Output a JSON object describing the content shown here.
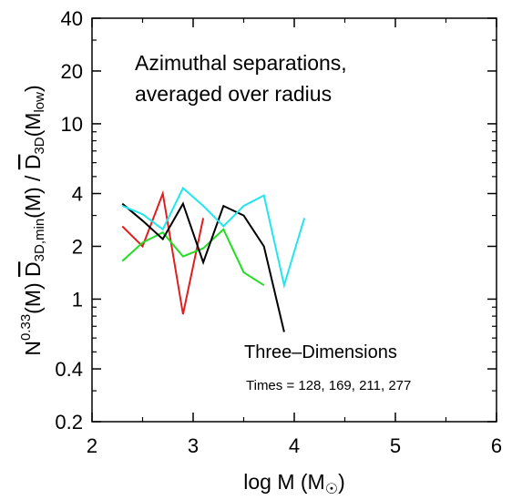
{
  "chart_data": {
    "type": "line",
    "title": "",
    "xlabel": "log M (M☉)",
    "xlabel_parts": {
      "main": "log M (M",
      "sub": "☉",
      "close": ")"
    },
    "ylabel_parts": {
      "n": "N",
      "n_sup": "0.33",
      "m_arg": "(M) ",
      "d1": "D",
      "d1_sub": "3D,min",
      "mid": "(M) / ",
      "d2": "D",
      "d2_sub": "3D",
      "m_low": "(M",
      "m_low_sub": "low",
      "close": ")"
    },
    "xlim": [
      2,
      6
    ],
    "ylim": [
      0.2,
      40
    ],
    "yscale": "log",
    "xticks": [
      2,
      3,
      4,
      5,
      6
    ],
    "xtick_labels": [
      "2",
      "3",
      "4",
      "5",
      "6"
    ],
    "yticks": [
      0.2,
      0.4,
      1,
      2,
      4,
      10,
      20,
      40
    ],
    "ytick_labels": [
      "0.2",
      "0.4",
      "1",
      "2",
      "4",
      "10",
      "20",
      "40"
    ],
    "grid": false,
    "annotations": {
      "heading_line1": "Azimuthal separations,",
      "heading_line2": "averaged over radius",
      "dims": "Three–Dimensions",
      "times": "Times = 128, 169, 211, 277"
    },
    "series": [
      {
        "color": "#e11d1d",
        "x": [
          2.3,
          2.5,
          2.7,
          2.9,
          3.1
        ],
        "y": [
          2.6,
          2.0,
          4.0,
          0.82,
          2.9
        ]
      },
      {
        "color": "#22dd22",
        "x": [
          2.3,
          2.5,
          2.7,
          2.9,
          3.1,
          3.3,
          3.5,
          3.7
        ],
        "y": [
          1.65,
          2.1,
          2.4,
          1.75,
          1.95,
          2.5,
          1.42,
          1.2
        ]
      },
      {
        "color": "#000000",
        "x": [
          2.3,
          2.5,
          2.7,
          2.9,
          3.1,
          3.3,
          3.5,
          3.7,
          3.9
        ],
        "y": [
          3.5,
          2.8,
          2.2,
          3.5,
          1.62,
          3.4,
          3.0,
          2.0,
          0.65
        ]
      },
      {
        "color": "#22e5ee",
        "x": [
          2.3,
          2.5,
          2.7,
          2.9,
          3.1,
          3.3,
          3.5,
          3.7,
          3.9,
          4.1
        ],
        "y": [
          3.4,
          3.05,
          2.5,
          4.3,
          3.4,
          2.6,
          3.4,
          3.9,
          1.2,
          2.9
        ]
      }
    ]
  }
}
